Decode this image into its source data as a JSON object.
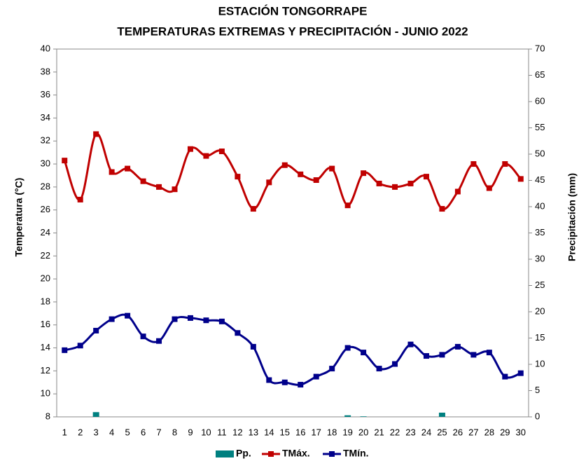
{
  "chart_data": {
    "type": "line",
    "title": "ESTACIÓN TONGORRAPE",
    "subtitle": "TEMPERATURAS  EXTREMAS Y PRECIPITACIÓN - JUNIO 2022",
    "y_label": "Temperatura (°C)",
    "y2_label": "Precipitación (mm)",
    "categories": [
      "1",
      "2",
      "3",
      "4",
      "5",
      "6",
      "7",
      "8",
      "9",
      "10",
      "11",
      "12",
      "13",
      "14",
      "15",
      "16",
      "17",
      "18",
      "19",
      "20",
      "21",
      "22",
      "23",
      "24",
      "25",
      "26",
      "27",
      "28",
      "29",
      "30"
    ],
    "series": [
      {
        "name": "Pp.",
        "type": "bar",
        "axis": "y2",
        "color": "#008080",
        "values": [
          0,
          0,
          0.9,
          0,
          0,
          0,
          0,
          0,
          0,
          0,
          0,
          0,
          0,
          0,
          0,
          0,
          0,
          0,
          0.3,
          0.1,
          0,
          0,
          0,
          0,
          0.8,
          0,
          0,
          0,
          0,
          0
        ]
      },
      {
        "name": "TMáx.",
        "type": "line",
        "color": "#c00000",
        "values": [
          30.3,
          26.9,
          32.6,
          29.3,
          29.6,
          28.5,
          28.0,
          27.8,
          31.3,
          30.7,
          31.1,
          28.9,
          26.1,
          28.4,
          29.9,
          29.1,
          28.6,
          29.6,
          26.4,
          29.2,
          28.3,
          28.0,
          28.3,
          28.9,
          26.1,
          27.6,
          30.0,
          27.9,
          30.0,
          28.7
        ]
      },
      {
        "name": "TMín.",
        "type": "line",
        "color": "#00008b",
        "values": [
          13.8,
          14.2,
          15.5,
          16.5,
          16.8,
          15.0,
          14.6,
          16.5,
          16.6,
          16.4,
          16.3,
          15.3,
          14.1,
          11.2,
          11.0,
          10.8,
          11.5,
          12.2,
          14.0,
          13.6,
          12.2,
          12.6,
          14.3,
          13.3,
          13.4,
          14.1,
          13.4,
          13.6,
          11.5,
          11.8
        ]
      }
    ],
    "ylim": [
      8,
      40
    ],
    "yticks": [
      8,
      10,
      12,
      14,
      16,
      18,
      20,
      22,
      24,
      26,
      28,
      30,
      32,
      34,
      36,
      38,
      40
    ],
    "y2lim": [
      0,
      70
    ],
    "y2ticks": [
      0,
      5,
      10,
      15,
      20,
      25,
      30,
      35,
      40,
      45,
      50,
      55,
      60,
      65,
      70
    ],
    "legend": "bottom"
  }
}
